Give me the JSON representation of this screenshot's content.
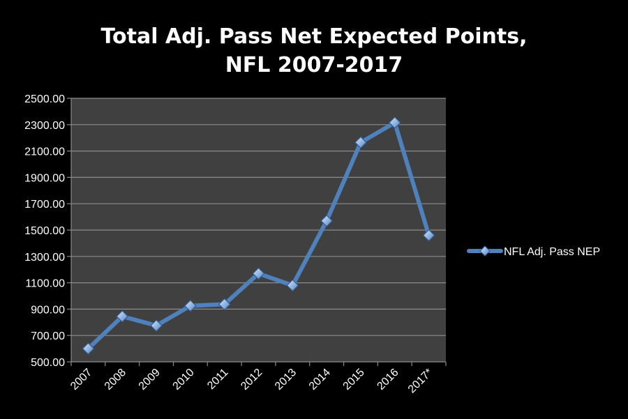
{
  "chart_data": {
    "type": "line",
    "title_lines": [
      "Total Adj. Pass Net Expected Points,",
      "NFL 2007-2017"
    ],
    "categories": [
      "2007",
      "2008",
      "2009",
      "2010",
      "2011",
      "2012",
      "2013",
      "2014",
      "2015",
      "2016",
      "2017*"
    ],
    "series": [
      {
        "name": "NFL Adj. Pass NEP",
        "values": [
          600,
          845,
          775,
          925,
          937,
          1170,
          1080,
          1570,
          2165,
          2315,
          1460
        ],
        "color": "#4f81bd"
      }
    ],
    "y_ticks": [
      "500.00",
      "700.00",
      "900.00",
      "1100.00",
      "1300.00",
      "1500.00",
      "1700.00",
      "1900.00",
      "2100.00",
      "2300.00",
      "2500.00"
    ],
    "ylim": [
      500,
      2500
    ],
    "grid": true,
    "legend_position": "right",
    "colors": {
      "background": "#000000",
      "plot_area": "#404040",
      "gridline": "#8c8c8c",
      "text": "#ffffff"
    }
  }
}
